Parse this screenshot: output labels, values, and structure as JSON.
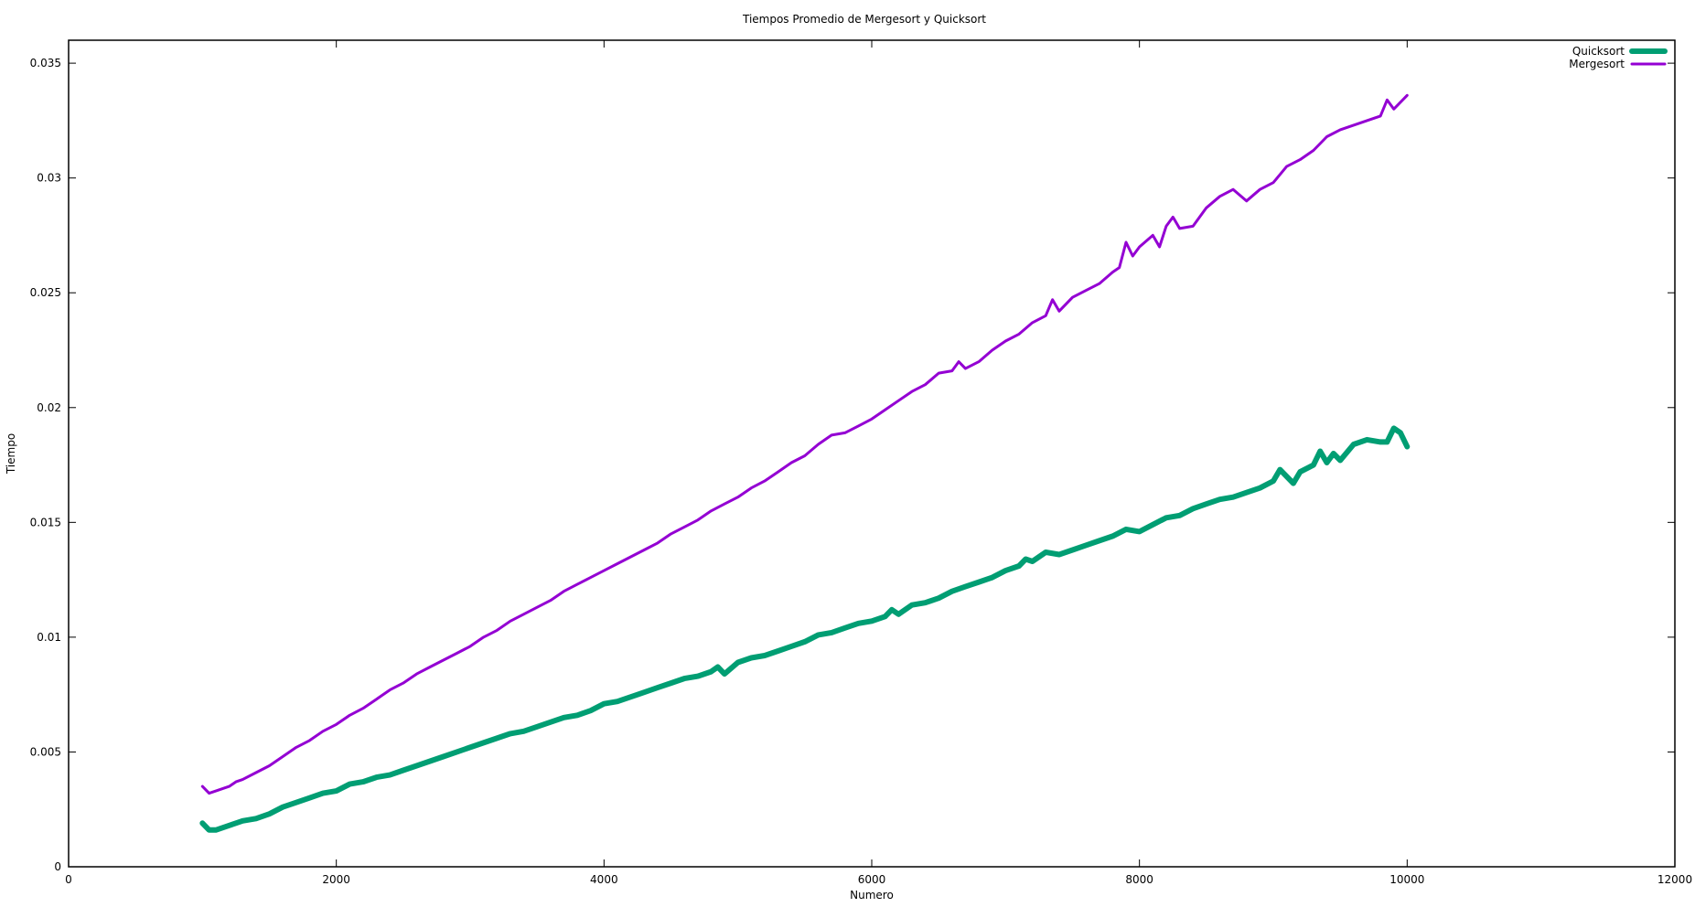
{
  "chart_data": {
    "type": "line",
    "title": "Tiempos Promedio de Mergesort y Quicksort",
    "xlabel": "Numero",
    "ylabel": "Tiempo",
    "xlim": [
      0,
      12000
    ],
    "ylim": [
      0,
      0.036
    ],
    "x_ticks": [
      "0",
      "2000",
      "4000",
      "6000",
      "8000",
      "10000",
      "12000"
    ],
    "y_ticks": [
      "0",
      "0.005",
      "0.01",
      "0.015",
      "0.02",
      "0.025",
      "0.03",
      "0.035"
    ],
    "grid": false,
    "legend_position": "top-right",
    "series": [
      {
        "name": "Quicksort",
        "color": "#009e73",
        "x": [
          1000,
          1050,
          1100,
          1150,
          1200,
          1250,
          1300,
          1400,
          1500,
          1600,
          1700,
          1800,
          1900,
          2000,
          2100,
          2200,
          2300,
          2400,
          2500,
          2600,
          2700,
          2800,
          2900,
          3000,
          3100,
          3200,
          3300,
          3400,
          3500,
          3600,
          3700,
          3800,
          3900,
          4000,
          4100,
          4200,
          4300,
          4400,
          4500,
          4600,
          4700,
          4800,
          4850,
          4900,
          5000,
          5100,
          5200,
          5300,
          5400,
          5500,
          5600,
          5700,
          5800,
          5900,
          6000,
          6100,
          6150,
          6200,
          6300,
          6400,
          6500,
          6600,
          6700,
          6800,
          6900,
          7000,
          7100,
          7150,
          7200,
          7300,
          7400,
          7500,
          7600,
          7700,
          7800,
          7900,
          8000,
          8100,
          8200,
          8300,
          8400,
          8500,
          8600,
          8700,
          8800,
          8900,
          9000,
          9050,
          9100,
          9150,
          9200,
          9300,
          9350,
          9400,
          9450,
          9500,
          9600,
          9700,
          9800,
          9850,
          9900,
          9950,
          10000
        ],
        "values": [
          0.0019,
          0.0016,
          0.0016,
          0.0017,
          0.0018,
          0.0019,
          0.002,
          0.0021,
          0.0023,
          0.0026,
          0.0028,
          0.003,
          0.0032,
          0.0033,
          0.0036,
          0.0037,
          0.0039,
          0.004,
          0.0042,
          0.0044,
          0.0046,
          0.0048,
          0.005,
          0.0052,
          0.0054,
          0.0056,
          0.0058,
          0.0059,
          0.0061,
          0.0063,
          0.0065,
          0.0066,
          0.0068,
          0.0071,
          0.0072,
          0.0074,
          0.0076,
          0.0078,
          0.008,
          0.0082,
          0.0083,
          0.0085,
          0.0087,
          0.0084,
          0.0089,
          0.0091,
          0.0092,
          0.0094,
          0.0096,
          0.0098,
          0.0101,
          0.0102,
          0.0104,
          0.0106,
          0.0107,
          0.0109,
          0.0112,
          0.011,
          0.0114,
          0.0115,
          0.0117,
          0.012,
          0.0122,
          0.0124,
          0.0126,
          0.0129,
          0.0131,
          0.0134,
          0.0133,
          0.0137,
          0.0136,
          0.0138,
          0.014,
          0.0142,
          0.0144,
          0.0147,
          0.0146,
          0.0149,
          0.0152,
          0.0153,
          0.0156,
          0.0158,
          0.016,
          0.0161,
          0.0163,
          0.0165,
          0.0168,
          0.0173,
          0.017,
          0.0167,
          0.0172,
          0.0175,
          0.0181,
          0.0176,
          0.018,
          0.0177,
          0.0184,
          0.0186,
          0.0185,
          0.0185,
          0.0191,
          0.0189,
          0.0183
        ]
      },
      {
        "name": "Mergesort",
        "color": "#9400d3",
        "x": [
          1000,
          1050,
          1100,
          1150,
          1200,
          1250,
          1300,
          1400,
          1500,
          1600,
          1700,
          1800,
          1900,
          2000,
          2100,
          2200,
          2300,
          2400,
          2500,
          2600,
          2700,
          2800,
          2900,
          3000,
          3100,
          3200,
          3300,
          3400,
          3500,
          3600,
          3700,
          3800,
          3900,
          4000,
          4100,
          4200,
          4300,
          4400,
          4500,
          4600,
          4700,
          4800,
          4900,
          5000,
          5100,
          5200,
          5300,
          5400,
          5500,
          5600,
          5700,
          5800,
          5900,
          6000,
          6100,
          6200,
          6300,
          6400,
          6500,
          6600,
          6650,
          6700,
          6800,
          6900,
          7000,
          7100,
          7200,
          7300,
          7350,
          7400,
          7500,
          7600,
          7700,
          7800,
          7850,
          7900,
          7950,
          8000,
          8100,
          8150,
          8200,
          8250,
          8300,
          8400,
          8500,
          8600,
          8700,
          8800,
          8900,
          9000,
          9100,
          9200,
          9300,
          9400,
          9500,
          9600,
          9700,
          9800,
          9850,
          9900,
          10000
        ],
        "values": [
          0.0035,
          0.0032,
          0.0033,
          0.0034,
          0.0035,
          0.0037,
          0.0038,
          0.0041,
          0.0044,
          0.0048,
          0.0052,
          0.0055,
          0.0059,
          0.0062,
          0.0066,
          0.0069,
          0.0073,
          0.0077,
          0.008,
          0.0084,
          0.0087,
          0.009,
          0.0093,
          0.0096,
          0.01,
          0.0103,
          0.0107,
          0.011,
          0.0113,
          0.0116,
          0.012,
          0.0123,
          0.0126,
          0.0129,
          0.0132,
          0.0135,
          0.0138,
          0.0141,
          0.0145,
          0.0148,
          0.0151,
          0.0155,
          0.0158,
          0.0161,
          0.0165,
          0.0168,
          0.0172,
          0.0176,
          0.0179,
          0.0184,
          0.0188,
          0.0189,
          0.0192,
          0.0195,
          0.0199,
          0.0203,
          0.0207,
          0.021,
          0.0215,
          0.0216,
          0.022,
          0.0217,
          0.022,
          0.0225,
          0.0229,
          0.0232,
          0.0237,
          0.024,
          0.0247,
          0.0242,
          0.0248,
          0.0251,
          0.0254,
          0.0259,
          0.0261,
          0.0272,
          0.0266,
          0.027,
          0.0275,
          0.027,
          0.0279,
          0.0283,
          0.0278,
          0.0279,
          0.0287,
          0.0292,
          0.0295,
          0.029,
          0.0295,
          0.0298,
          0.0305,
          0.0308,
          0.0312,
          0.0318,
          0.0321,
          0.0323,
          0.0325,
          0.0327,
          0.0334,
          0.033,
          0.0336
        ]
      }
    ]
  }
}
